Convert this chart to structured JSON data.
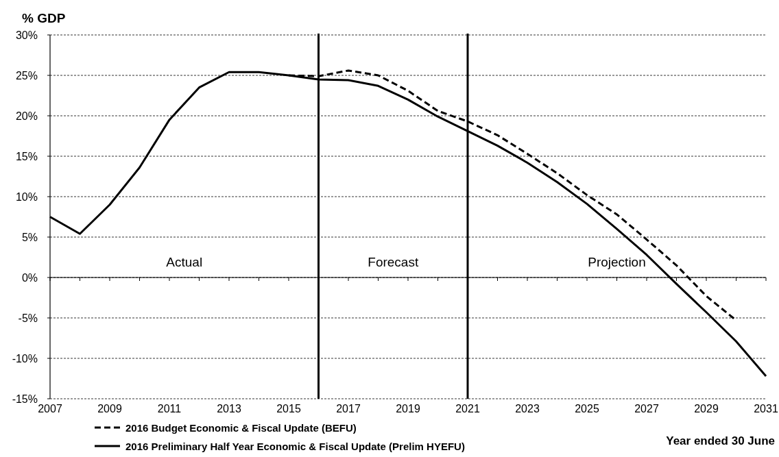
{
  "chart_data": {
    "type": "line",
    "xlabel": "Year ended 30 June",
    "ylabel": "% GDP",
    "xlim": [
      2007,
      2031
    ],
    "ylim": [
      -15,
      30
    ],
    "xticks": [
      {
        "value": 2007,
        "label": "2007"
      },
      {
        "value": 2008,
        "label": null
      },
      {
        "value": 2009,
        "label": "2009"
      },
      {
        "value": 2010,
        "label": null
      },
      {
        "value": 2011,
        "label": "2011"
      },
      {
        "value": 2012,
        "label": null
      },
      {
        "value": 2013,
        "label": "2013"
      },
      {
        "value": 2014,
        "label": null
      },
      {
        "value": 2015,
        "label": "2015"
      },
      {
        "value": 2016,
        "label": null
      },
      {
        "value": 2017,
        "label": "2017"
      },
      {
        "value": 2018,
        "label": null
      },
      {
        "value": 2019,
        "label": "2019"
      },
      {
        "value": 2020,
        "label": null
      },
      {
        "value": 2021,
        "label": "2021"
      },
      {
        "value": 2022,
        "label": null
      },
      {
        "value": 2023,
        "label": "2023"
      },
      {
        "value": 2024,
        "label": null
      },
      {
        "value": 2025,
        "label": "2025"
      },
      {
        "value": 2026,
        "label": null
      },
      {
        "value": 2027,
        "label": "2027"
      },
      {
        "value": 2028,
        "label": null
      },
      {
        "value": 2029,
        "label": "2029"
      },
      {
        "value": 2030,
        "label": null
      },
      {
        "value": 2031,
        "label": "2031"
      }
    ],
    "yticks": [
      {
        "value": -15,
        "label": "-15%"
      },
      {
        "value": -10,
        "label": "-10%"
      },
      {
        "value": -5,
        "label": "-5%"
      },
      {
        "value": 0,
        "label": "0%"
      },
      {
        "value": 5,
        "label": "5%"
      },
      {
        "value": 10,
        "label": "10%"
      },
      {
        "value": 15,
        "label": "15%"
      },
      {
        "value": 20,
        "label": "20%"
      },
      {
        "value": 25,
        "label": "25%"
      },
      {
        "value": 30,
        "label": "30%"
      }
    ],
    "grid": "y",
    "legend": "bottom",
    "series": [
      {
        "name": "2016 Budget Economic & Fiscal Update (BEFU)",
        "color": "#000000",
        "line_style": "dashed",
        "x": [
          2015,
          2016,
          2017,
          2018,
          2019,
          2020,
          2021,
          2022,
          2023,
          2024,
          2025,
          2026,
          2027,
          2028,
          2029,
          2030
        ],
        "values": [
          25.0,
          24.9,
          25.6,
          25.0,
          23.1,
          20.6,
          19.3,
          17.6,
          15.3,
          12.9,
          10.2,
          7.8,
          4.7,
          1.5,
          -2.3,
          -5.3
        ]
      },
      {
        "name": "2016 Preliminary Half Year Economic & Fiscal Update (Prelim HYEFU)",
        "color": "#000000",
        "line_style": "solid",
        "x": [
          2007,
          2008,
          2009,
          2010,
          2011,
          2012,
          2013,
          2014,
          2015,
          2016,
          2017,
          2018,
          2019,
          2020,
          2021,
          2022,
          2023,
          2024,
          2025,
          2026,
          2027,
          2028,
          2029,
          2030,
          2031
        ],
        "values": [
          7.5,
          5.4,
          9.0,
          13.6,
          19.5,
          23.5,
          25.4,
          25.4,
          25.0,
          24.5,
          24.4,
          23.7,
          22.0,
          19.9,
          18.1,
          16.3,
          14.2,
          11.8,
          9.1,
          6.0,
          2.8,
          -0.8,
          -4.3,
          -7.9,
          -12.2
        ]
      }
    ],
    "ref_lines": [
      {
        "axis": "x",
        "value": 2016,
        "color": "#000000",
        "line_style": "solid"
      },
      {
        "axis": "x",
        "value": 2021,
        "color": "#000000",
        "line_style": "solid"
      }
    ],
    "annotations": [
      "Actual",
      "Forecast",
      "Projection"
    ]
  }
}
